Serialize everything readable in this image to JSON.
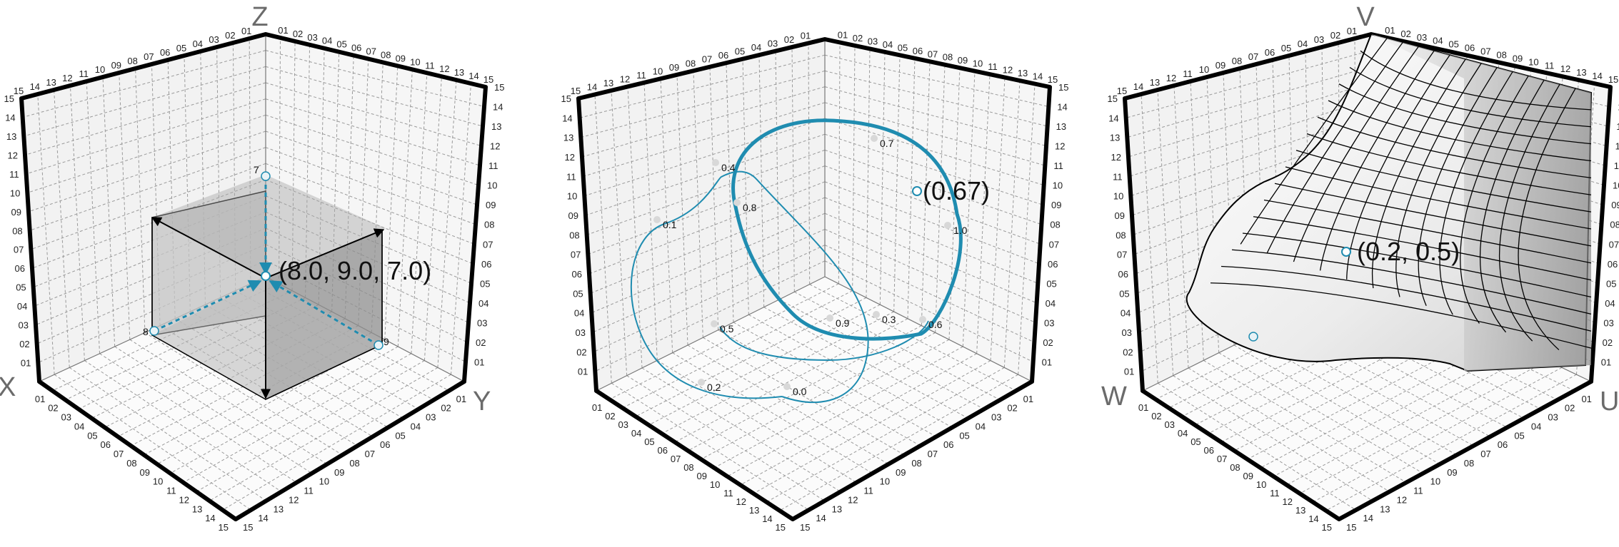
{
  "panels": [
    {
      "id": "point",
      "axis_names": {
        "x": "X",
        "y": "Y",
        "z": "Z"
      },
      "tick_labels": [
        "01",
        "02",
        "03",
        "04",
        "05",
        "06",
        "07",
        "08",
        "09",
        "10",
        "11",
        "12",
        "13",
        "14",
        "15"
      ],
      "point_label": "(8.0, 9.0, 7.0)",
      "projection_labels": {
        "x": "8",
        "y": "9",
        "z": "7"
      }
    },
    {
      "id": "curve",
      "axis_names": {
        "x": "",
        "y": "",
        "z": ""
      },
      "tick_labels": [
        "01",
        "02",
        "03",
        "04",
        "05",
        "06",
        "07",
        "08",
        "09",
        "10",
        "11",
        "12",
        "13",
        "14",
        "15"
      ],
      "point_label": "(0.67)",
      "param_labels": [
        "0.0",
        "0.1",
        "0.2",
        "0.3",
        "0.4",
        "0.5",
        "0.6",
        "0.7",
        "0.8",
        "0.9",
        "1.0"
      ]
    },
    {
      "id": "surface",
      "axis_names": {
        "x": "W",
        "y": "U",
        "z": "V"
      },
      "tick_labels": [
        "01",
        "02",
        "03",
        "04",
        "05",
        "06",
        "07",
        "08",
        "09",
        "10",
        "11",
        "12",
        "13",
        "14",
        "15"
      ],
      "point_label": "(0.2, 0.5)"
    }
  ],
  "colors": {
    "accent": "#1f8cb0",
    "frame": "#000000",
    "grid": "#9a9a9a",
    "wall": "#f2f2f2",
    "axis_name": "#6b6b6b"
  }
}
